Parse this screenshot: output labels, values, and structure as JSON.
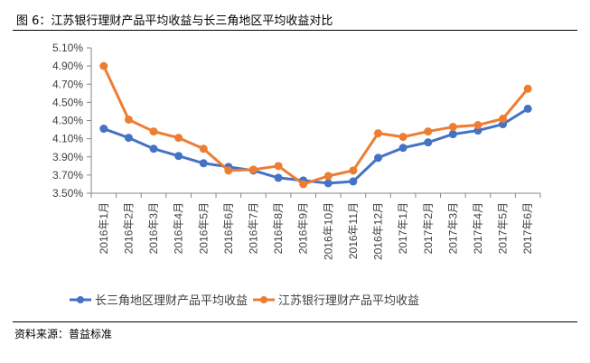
{
  "title": "图 6：江苏银行理财产品平均收益与长三角地区平均收益对比",
  "source": "资料来源：普益标准",
  "chart_data": {
    "type": "line",
    "title": "图 6：江苏银行理财产品平均收益与长三角地区平均收益对比",
    "xlabel": "",
    "ylabel": "",
    "ylim": [
      3.5,
      5.1
    ],
    "yticks": [
      3.5,
      3.7,
      3.9,
      4.1,
      4.3,
      4.5,
      4.7,
      4.9,
      5.1
    ],
    "ytick_labels": [
      "3.50%",
      "3.70%",
      "3.90%",
      "4.10%",
      "4.30%",
      "4.50%",
      "4.70%",
      "4.90%",
      "5.10%"
    ],
    "grid": false,
    "legend_position": "bottom",
    "categories": [
      "2016年1月",
      "2016年2月",
      "2016年3月",
      "2016年4月",
      "2016年5月",
      "2016年6月",
      "2016年7月",
      "2016年8月",
      "2016年9月",
      "2016年10月",
      "2016年11月",
      "2016年12月",
      "2017年1月",
      "2017年2月",
      "2017年3月",
      "2017年4月",
      "2017年5月",
      "2017年6月"
    ],
    "series": [
      {
        "name": "长三角地区理财产品平均收益",
        "color": "#4472C4",
        "values": [
          4.21,
          4.11,
          3.99,
          3.91,
          3.83,
          3.79,
          3.75,
          3.67,
          3.64,
          3.61,
          3.63,
          3.89,
          4.0,
          4.06,
          4.15,
          4.19,
          4.26,
          4.43
        ]
      },
      {
        "name": "江苏银行理财产品平均收益",
        "color": "#ED7D31",
        "values": [
          4.9,
          4.31,
          4.18,
          4.11,
          3.99,
          3.75,
          3.76,
          3.8,
          3.6,
          3.69,
          3.75,
          4.16,
          4.12,
          4.18,
          4.23,
          4.25,
          4.32,
          4.65
        ]
      }
    ]
  }
}
